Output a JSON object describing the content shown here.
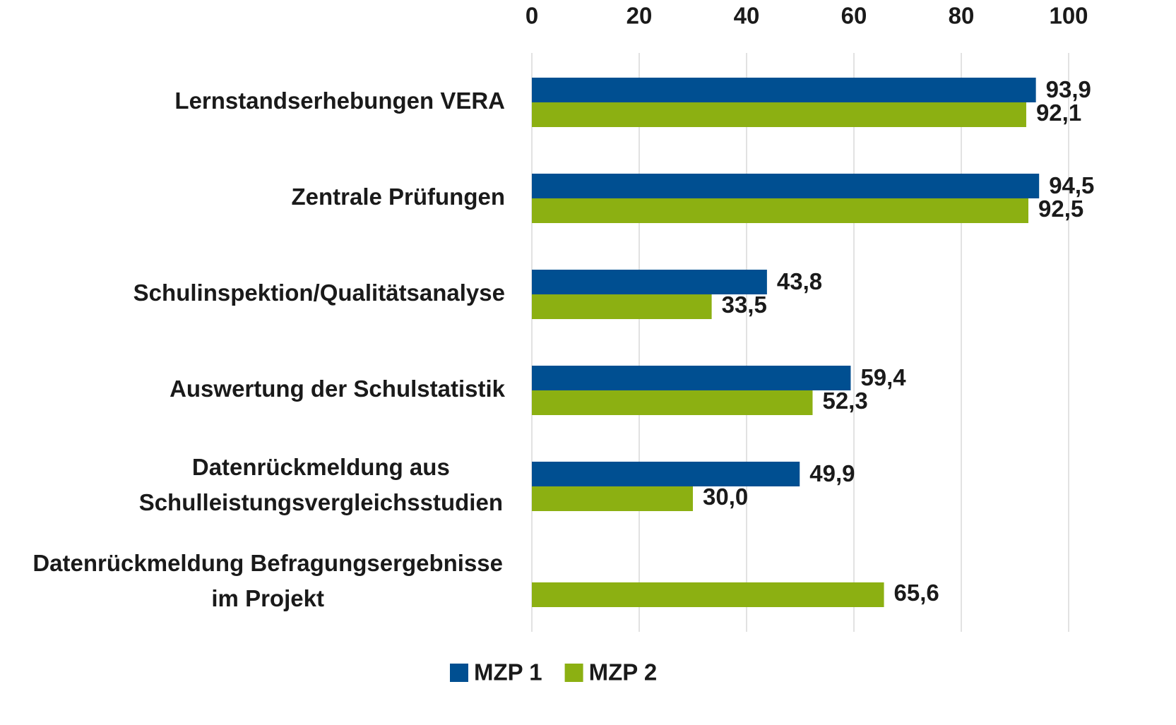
{
  "chart_data": {
    "type": "bar",
    "orientation": "horizontal",
    "categories": [
      "Lernstandserhebungen VERA",
      "Zentrale Prüfungen",
      "Schulinspektion/Qualitätsanalyse",
      "Auswertung der Schulstatistik",
      "Datenrückmeldung aus\nSchulleistungsvergleichsstudien",
      "Datenrückmeldung Befragungsergebnisse\nim Projekt"
    ],
    "series": [
      {
        "name": "MZP 1",
        "color": "#004f91",
        "values": [
          93.9,
          94.5,
          43.8,
          59.4,
          49.9,
          null
        ],
        "value_labels": [
          "93,9",
          "94,5",
          "43,8",
          "59,4",
          "49,9",
          null
        ]
      },
      {
        "name": "MZP 2",
        "color": "#8cb012",
        "values": [
          92.1,
          92.5,
          33.5,
          52.3,
          30.0,
          65.6
        ],
        "value_labels": [
          "92,1",
          "92,5",
          "33,5",
          "52,3",
          "30,0",
          "65,6"
        ]
      }
    ],
    "xlim": [
      0,
      100
    ],
    "xticks": [
      0,
      20,
      40,
      60,
      80,
      100
    ],
    "grid": true,
    "legend": "bottom"
  }
}
